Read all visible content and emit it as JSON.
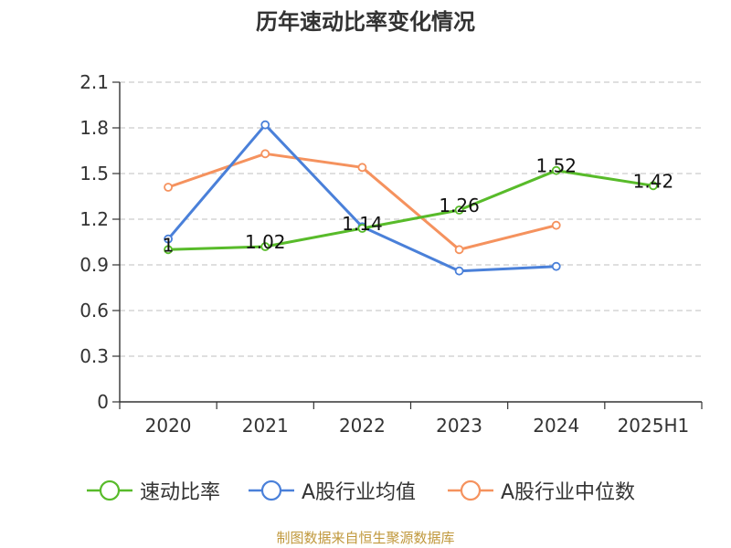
{
  "chart_data": {
    "type": "line",
    "title": "历年速动比率变化情况",
    "categories": [
      "2020",
      "2021",
      "2022",
      "2023",
      "2024",
      "2025H1"
    ],
    "ylim": [
      0,
      2.1
    ],
    "yticks": [
      "0",
      "0.3",
      "0.6",
      "0.9",
      "1.2",
      "1.5",
      "1.8",
      "2.1"
    ],
    "grid": true,
    "legend_position": "bottom",
    "series": [
      {
        "name": "速动比率",
        "color": "#58bb2a",
        "values": [
          1.0,
          1.02,
          1.14,
          1.26,
          1.52,
          1.42
        ],
        "labels": [
          "1",
          "1.02",
          "1.14",
          "1.26",
          "1.52",
          "1.42"
        ]
      },
      {
        "name": "A股行业均值",
        "color": "#4a80d9",
        "values": [
          1.07,
          1.82,
          1.15,
          0.86,
          0.89,
          null
        ]
      },
      {
        "name": "A股行业中位数",
        "color": "#f5925e",
        "values": [
          1.41,
          1.63,
          1.54,
          1.0,
          1.16,
          null
        ]
      }
    ]
  },
  "source_note": "制图数据来自恒生聚源数据库"
}
